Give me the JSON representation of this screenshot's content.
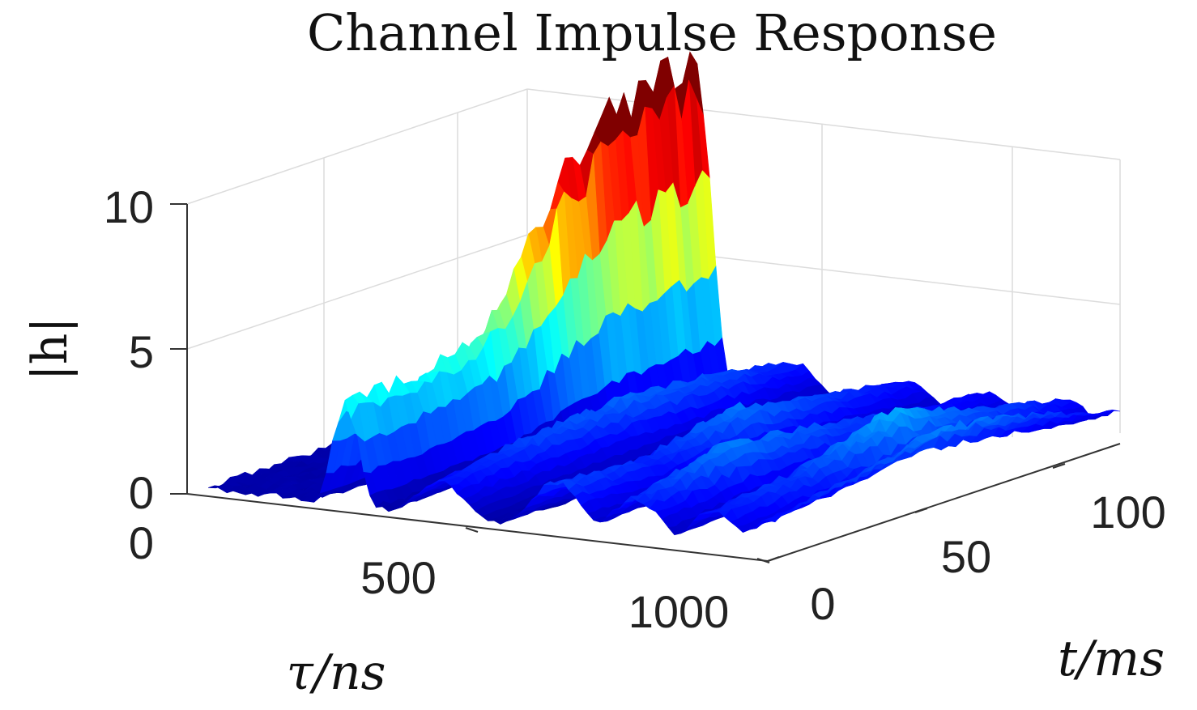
{
  "chart_data": {
    "type": "surface",
    "title": "Channel Impulse Response",
    "xlabel": "τ/ns",
    "ylabel": "t/ms",
    "zlabel": "|h|",
    "xlim": [
      0,
      1100
    ],
    "ylim": [
      0,
      120
    ],
    "zlim": [
      0,
      10
    ],
    "x_ticks": [
      "0",
      "500",
      "1000"
    ],
    "y_ticks": [
      "0",
      "50",
      "100"
    ],
    "z_ticks": [
      "0",
      "5",
      "10"
    ],
    "grid": true,
    "colormap": "jet",
    "colormap_stops": [
      "#00008f",
      "#0000ff",
      "#0080ff",
      "#00ffff",
      "#80ff80",
      "#ffff00",
      "#ff8000",
      "#ff0000",
      "#800000"
    ],
    "main_path": {
      "tau_ns": 300,
      "t_ms": [
        0,
        10,
        20,
        30,
        40,
        50,
        60,
        70,
        80,
        90,
        100,
        110,
        120
      ],
      "h": [
        3.8,
        3.8,
        3.9,
        4.0,
        4.3,
        5.0,
        6.5,
        8.5,
        9.8,
        10.5,
        11.0,
        11.3,
        11.5
      ]
    },
    "secondary_paths": [
      {
        "tau_ns": 480,
        "t_ms": [
          0,
          30,
          60,
          90,
          120
        ],
        "h": [
          1.4,
          1.9,
          2.2,
          2.0,
          1.5
        ]
      },
      {
        "tau_ns": 700,
        "t_ms": [
          0,
          30,
          60,
          90,
          120
        ],
        "h": [
          1.9,
          1.6,
          2.4,
          1.8,
          1.3
        ]
      },
      {
        "tau_ns": 850,
        "t_ms": [
          0,
          30,
          60,
          90,
          120
        ],
        "h": [
          1.6,
          2.4,
          2.1,
          1.5,
          1.2
        ]
      },
      {
        "tau_ns": 1000,
        "t_ms": [
          0,
          30,
          60,
          90,
          120
        ],
        "h": [
          1.5,
          1.9,
          2.9,
          2.0,
          1.3
        ]
      },
      {
        "tau_ns": 1100,
        "t_ms": [
          0,
          30,
          60,
          90,
          120
        ],
        "h": [
          1.3,
          1.8,
          2.6,
          2.0,
          1.1
        ]
      }
    ],
    "noise_floor": 0.3
  }
}
